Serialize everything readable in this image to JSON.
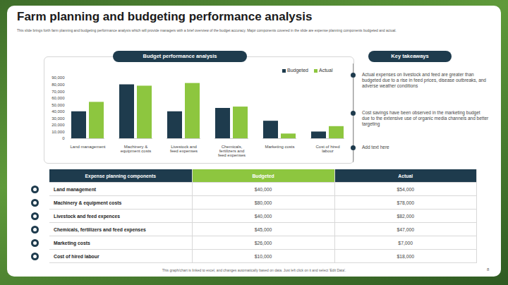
{
  "title": "Farm planning and budgeting performance analysis",
  "subtitle": "This slide brings forth farm planning and budgeting performance analysis which will provide managers with a brief overview of the budget accuracy. Major components covered in the slide are expense planning components budgeted and actual.",
  "chart_data": {
    "type": "bar",
    "title": "Budget performance analysis",
    "categories": [
      "Land management",
      "Machinery & equipment costs",
      "Livestock and feed expenses",
      "Chemicals, fertilizers and feed expenses",
      "Marketing costs",
      "Cost of hired labour"
    ],
    "series": [
      {
        "name": "Budgeted",
        "color": "#1e3b4d",
        "values": [
          40000,
          80000,
          40000,
          45000,
          26000,
          10000
        ]
      },
      {
        "name": "Actual",
        "color": "#8dc63f",
        "values": [
          54000,
          78000,
          82000,
          47000,
          7000,
          18000
        ]
      }
    ],
    "ylim": [
      0,
      90000
    ],
    "yticks": [
      0,
      {
        "value": 10000,
        "label": "10,000"
      },
      {
        "value": 20000,
        "label": "20,000"
      },
      {
        "value": 30000,
        "label": "30,000"
      },
      {
        "value": 40000,
        "label": "40,000"
      },
      {
        "value": 50000,
        "label": "50,000"
      },
      {
        "value": 60000,
        "label": "60,000"
      },
      {
        "value": 70000,
        "label": "70,000"
      },
      {
        "value": 80000,
        "label": "80,000"
      },
      {
        "value": 90000,
        "label": "90,000"
      }
    ],
    "grid": false,
    "legend": "top-right"
  },
  "key_takeaways": {
    "title": "Key takeaways",
    "items": [
      "Actual expenses on livestock and feed are greater than budgeted due to a rise in feed prices, disease outbreaks, and adverse weather conditions",
      "Cost savings have been observed in the marketing budget due to the extensive use of organic media channels and better targeting",
      "Add text here"
    ]
  },
  "table": {
    "header": [
      "Expense planning components",
      "Budgeted",
      "Actual"
    ],
    "rows": [
      [
        "Land management",
        "$40,000",
        "$54,000"
      ],
      [
        "Machinery & equipment costs",
        "$80,000",
        "$78,000"
      ],
      [
        "Livestock and feed expences",
        "$40,000",
        "$82,000"
      ],
      [
        "Chemicals, fertilizers and feed expenses",
        "$45,000",
        "$47,000"
      ],
      [
        "Marketing costs",
        "$26,000",
        "$7,000"
      ],
      [
        "Cost of hired labour",
        "$10,000",
        "$18,000"
      ]
    ]
  },
  "footer": "This graph/chart is linked to excel, and changes automatically based on data. Just left click on it and select 'Edit Data'.",
  "page_number": 8
}
